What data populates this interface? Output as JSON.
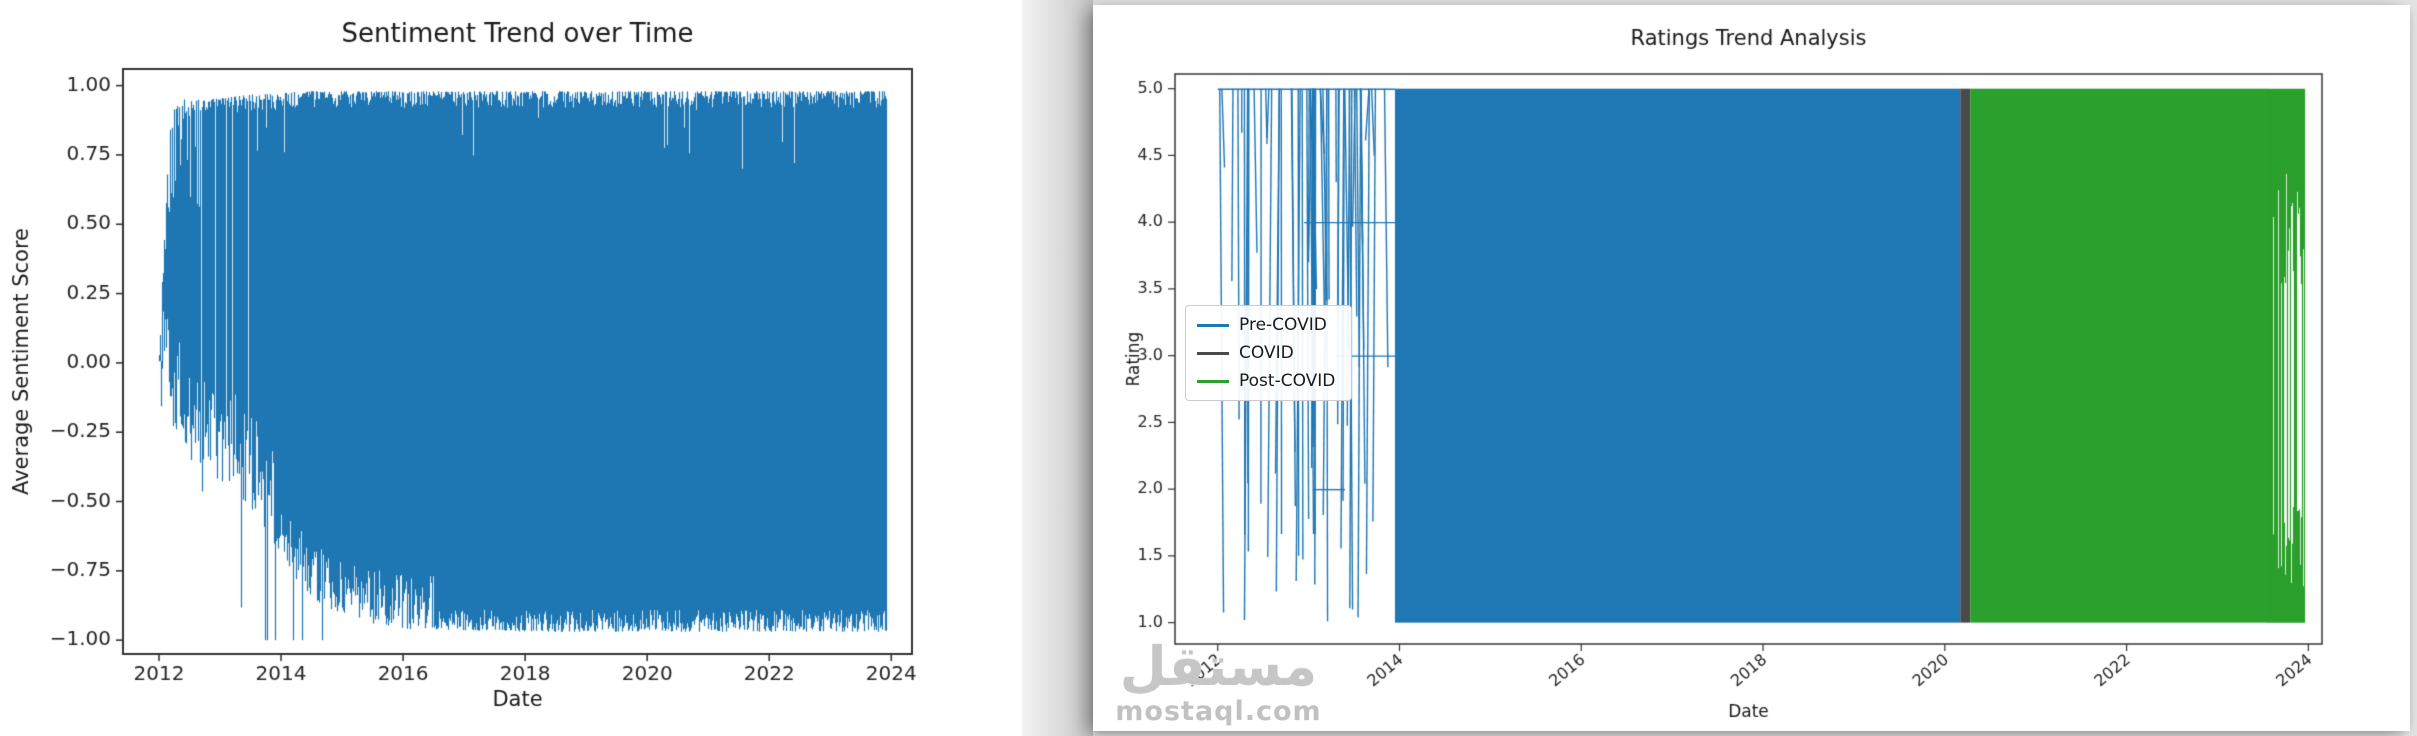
{
  "page": {
    "background": "#e3e3e3",
    "panel_background": "#ffffff"
  },
  "watermark": {
    "arabic": "مستقل",
    "domain": "mostaql.com"
  },
  "chart_data": [
    {
      "type": "line",
      "title": "Sentiment Trend over Time",
      "xlabel": "Date",
      "ylabel": "Average Sentiment Score",
      "xlim": [
        2011.41,
        2024.34
      ],
      "ylim": [
        -1.05,
        1.06
      ],
      "grid": false,
      "line_color": "#1f77b4",
      "x_ticks": [
        {
          "v": 2012,
          "label": "2012"
        },
        {
          "v": 2014,
          "label": "2014"
        },
        {
          "v": 2016,
          "label": "2016"
        },
        {
          "v": 2018,
          "label": "2018"
        },
        {
          "v": 2020,
          "label": "2020"
        },
        {
          "v": 2022,
          "label": "2022"
        },
        {
          "v": 2024,
          "label": "2024"
        }
      ],
      "y_ticks": [
        {
          "v": 1.0,
          "label": "1.00"
        },
        {
          "v": 0.75,
          "label": "0.75"
        },
        {
          "v": 0.5,
          "label": "0.50"
        },
        {
          "v": 0.25,
          "label": "0.25"
        },
        {
          "v": 0.0,
          "label": "0.00"
        },
        {
          "v": -0.25,
          "label": "−0.25"
        },
        {
          "v": -0.5,
          "label": "−0.50"
        },
        {
          "v": -0.75,
          "label": "−0.75"
        },
        {
          "v": -1.0,
          "label": "−1.00"
        }
      ],
      "series": [
        {
          "name": "Average Sentiment",
          "color": "#1f77b4",
          "x_start": 2012.0,
          "x_end": 2023.92,
          "sparse_until": 2013.7,
          "gap_probability": 0.1,
          "envelope": [
            {
              "x": 2012.0,
              "low": -0.02,
              "high": 0.04
            },
            {
              "x": 2012.08,
              "low": -0.1,
              "high": 0.45
            },
            {
              "x": 2012.18,
              "low": -0.22,
              "high": 0.9
            },
            {
              "x": 2012.4,
              "low": -0.3,
              "high": 0.95
            },
            {
              "x": 2012.8,
              "low": -0.4,
              "high": 0.95
            },
            {
              "x": 2013.2,
              "low": -0.45,
              "high": 0.96
            },
            {
              "x": 2013.6,
              "low": -0.55,
              "high": 0.97
            },
            {
              "x": 2013.95,
              "low": -0.7,
              "high": 0.97
            },
            {
              "x": 2014.3,
              "low": -0.8,
              "high": 0.98
            },
            {
              "x": 2014.7,
              "low": -0.88,
              "high": 0.98
            },
            {
              "x": 2015.2,
              "low": -0.93,
              "high": 0.98
            },
            {
              "x": 2016.0,
              "low": -0.96,
              "high": 0.98
            },
            {
              "x": 2018.0,
              "low": -0.97,
              "high": 0.98
            },
            {
              "x": 2021.0,
              "low": -0.97,
              "high": 0.98
            },
            {
              "x": 2023.92,
              "low": -0.97,
              "high": 0.98
            }
          ]
        }
      ]
    },
    {
      "type": "line",
      "title": "Ratings Trend Analysis",
      "xlabel": "Date",
      "ylabel": "Rating",
      "xlim": [
        2011.53,
        2024.15
      ],
      "ylim": [
        0.84,
        5.11
      ],
      "grid": false,
      "x_tick_rotation": -40,
      "x_ticks": [
        {
          "v": 2012,
          "label": "2012"
        },
        {
          "v": 2014,
          "label": "2014"
        },
        {
          "v": 2016,
          "label": "2016"
        },
        {
          "v": 2018,
          "label": "2018"
        },
        {
          "v": 2020,
          "label": "2020"
        },
        {
          "v": 2022,
          "label": "2022"
        },
        {
          "v": 2024,
          "label": "2024"
        }
      ],
      "y_ticks": [
        {
          "v": 5.0,
          "label": "5.0"
        },
        {
          "v": 4.5,
          "label": "4.5"
        },
        {
          "v": 4.0,
          "label": "4.0"
        },
        {
          "v": 3.5,
          "label": "3.5"
        },
        {
          "v": 3.0,
          "label": "3.0"
        },
        {
          "v": 2.5,
          "label": "2.5"
        },
        {
          "v": 2.0,
          "label": "2.0"
        },
        {
          "v": 1.5,
          "label": "1.5"
        },
        {
          "v": 1.0,
          "label": "1.0"
        }
      ],
      "legend": {
        "position": "center-left",
        "entries": [
          {
            "label": "Pre-COVID",
            "color": "#1f77b4"
          },
          {
            "label": "COVID",
            "color": "#4a4a4a"
          },
          {
            "label": "Post-COVID",
            "color": "#2ca02c"
          }
        ]
      },
      "segments": [
        {
          "name": "pre-covid-sparse",
          "color": "#1f77b4",
          "x0": 2012.0,
          "x1": 2013.95,
          "low": 1.0,
          "high": 5.0,
          "style": "sparse",
          "stroke_count": 60,
          "plateaus": [
            {
              "y": 5.0,
              "x0": 2012.0,
              "x1": 2013.95
            },
            {
              "y": 4.0,
              "x0": 2012.95,
              "x1": 2013.95
            },
            {
              "y": 3.0,
              "x0": 2013.3,
              "x1": 2013.95
            },
            {
              "y": 2.0,
              "x0": 2013.05,
              "x1": 2013.4
            }
          ]
        },
        {
          "name": "pre-covid-dense",
          "color": "#1f77b4",
          "x0": 2013.95,
          "x1": 2020.17,
          "low": 1.0,
          "high": 5.0,
          "style": "solid"
        },
        {
          "name": "covid",
          "color": "#4a4a4a",
          "x0": 2020.17,
          "x1": 2020.28,
          "low": 1.0,
          "high": 5.0,
          "style": "solid"
        },
        {
          "name": "post-covid-dense",
          "color": "#2ca02c",
          "x0": 2020.28,
          "x1": 2023.55,
          "low": 1.0,
          "high": 5.0,
          "style": "solid"
        },
        {
          "name": "post-covid-tail",
          "color": "#2ca02c",
          "x0": 2023.55,
          "x1": 2023.95,
          "low": 1.0,
          "high": 5.0,
          "style": "tail"
        }
      ]
    }
  ]
}
